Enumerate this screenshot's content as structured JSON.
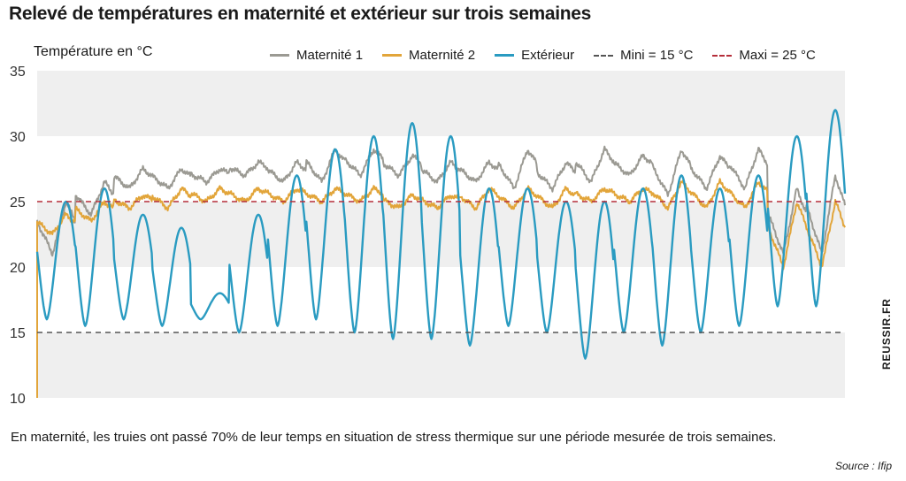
{
  "title": "Relevé de températures en maternité et extérieur sur trois semaines",
  "caption": "En maternité, les truies ont passé 70% de leur temps en situation de stress thermique sur une période mesurée de trois semaines.",
  "source": "Source : Ifip",
  "credit": "REUSSIR.FR",
  "chart_data": {
    "type": "line",
    "ylabel": "Température en °C",
    "xlabel": "",
    "ylim": [
      10,
      35
    ],
    "yticks": [
      10,
      15,
      20,
      25,
      30,
      35
    ],
    "x_days": [
      0,
      21
    ],
    "grid": "horizontal bands",
    "legend_placement": "top",
    "thresholds": [
      {
        "name": "Mini = 15 °C",
        "value": 15,
        "color": "#555555"
      },
      {
        "name": "Maxi = 25 °C",
        "value": 25,
        "color": "#b52e3a"
      }
    ],
    "series": [
      {
        "name": "Maternité 1",
        "color": "#9b9a93",
        "min": [
          21,
          24,
          26,
          26,
          26.5,
          27,
          26.5,
          26.5,
          27,
          27,
          26.5,
          26.5,
          26,
          26,
          26.5,
          27,
          25.5,
          26,
          26,
          21,
          21
        ],
        "max": [
          25,
          26.5,
          27.5,
          27.5,
          27.5,
          28,
          28,
          29,
          29,
          28.5,
          28,
          28,
          29,
          28,
          29,
          28.5,
          29,
          28.5,
          29,
          26,
          27
        ]
      },
      {
        "name": "Maternité 2",
        "color": "#e2a53a",
        "min": [
          22.5,
          23.5,
          24.5,
          24.5,
          25,
          25,
          25,
          25,
          25,
          24.5,
          24.5,
          24.5,
          24.5,
          24.5,
          25,
          25,
          24.5,
          24.5,
          24.5,
          20,
          20
        ],
        "max": [
          24,
          25,
          25.5,
          26,
          26,
          26,
          26,
          26,
          26,
          25.5,
          25.5,
          26,
          26,
          26,
          26,
          26,
          26.5,
          26.5,
          26.5,
          25,
          25
        ]
      },
      {
        "name": "Extérieur",
        "color": "#2a9bc1",
        "min": [
          16,
          15.5,
          16,
          15.5,
          16,
          15,
          15.5,
          16,
          15,
          14.5,
          14.5,
          14,
          15.5,
          15,
          13,
          15,
          14,
          15,
          15.5,
          17,
          17
        ],
        "max": [
          25,
          26,
          24,
          23,
          18,
          24,
          27,
          29,
          30,
          31,
          30,
          26,
          26,
          25,
          25,
          26,
          27,
          26,
          27,
          30,
          32
        ]
      }
    ]
  }
}
